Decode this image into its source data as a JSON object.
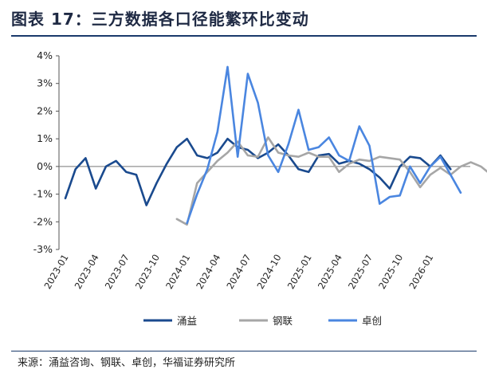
{
  "title": "图表 17：三方数据各口径能繁环比变动",
  "source": "来源：涌益咨询、钢联、卓创，华福证券研究所",
  "chart_data": {
    "type": "line",
    "title": "图表 17：三方数据各口径能繁环比变动",
    "xlabel": "",
    "ylabel": "",
    "ylim": [
      -3,
      4
    ],
    "yticks": [
      -3,
      -2,
      -1,
      0,
      1,
      2,
      3,
      4
    ],
    "ytick_labels": [
      "-3%",
      "-2%",
      "-1%",
      "0%",
      "1%",
      "2%",
      "3%",
      "4%"
    ],
    "xtick_labels": [
      "2023-01",
      "2023-04",
      "2023-07",
      "2023-10",
      "2024-01",
      "2024-04",
      "2024-07",
      "2024-10",
      "2025-01",
      "2025-04",
      "2025-07",
      "2025-10",
      "2026-01"
    ],
    "xtick_index": [
      0,
      3,
      6,
      9,
      12,
      15,
      18,
      21,
      24,
      27,
      30,
      33,
      36
    ],
    "n_periods": 40,
    "legend_position": "bottom",
    "series": [
      {
        "name": "涌益",
        "color": "#1a4a8e",
        "start": 0,
        "values": [
          -1.15,
          -0.1,
          0.3,
          -0.8,
          0.0,
          0.2,
          -0.2,
          -0.3,
          -1.4,
          -0.6,
          0.1,
          0.7,
          1.0,
          0.4,
          0.3,
          0.5,
          1.0,
          0.7,
          0.6,
          0.3,
          0.5,
          0.8,
          0.4,
          -0.1,
          -0.2,
          0.4,
          0.45,
          0.1,
          0.2,
          0.1,
          -0.1,
          -0.4,
          -0.8,
          0.0,
          0.35,
          0.3,
          0.0,
          0.4,
          -0.1
        ]
      },
      {
        "name": "钢联",
        "color": "#a6a6a6",
        "start": 11,
        "values": [
          -1.9,
          -2.1,
          -0.6,
          -0.2,
          0.2,
          0.5,
          0.9,
          0.4,
          0.35,
          1.05,
          0.5,
          0.4,
          0.35,
          0.5,
          0.35,
          0.35,
          -0.2,
          0.1,
          0.25,
          0.2,
          0.35,
          0.3,
          0.25,
          -0.2,
          -0.75,
          -0.3,
          -0.05,
          -0.3,
          0.0,
          0.15,
          0.0,
          -0.3
        ]
      },
      {
        "name": "卓创",
        "color": "#4a86e0",
        "start": 12,
        "values": [
          -2.05,
          -1.0,
          -0.1,
          1.25,
          3.6,
          0.35,
          3.35,
          2.3,
          0.4,
          -0.2,
          0.8,
          2.05,
          0.6,
          0.7,
          1.05,
          0.4,
          0.2,
          1.45,
          0.75,
          -1.35,
          -1.1,
          -1.05,
          0.0,
          -0.6,
          0.0,
          0.35,
          -0.3,
          -0.95
        ]
      }
    ]
  }
}
